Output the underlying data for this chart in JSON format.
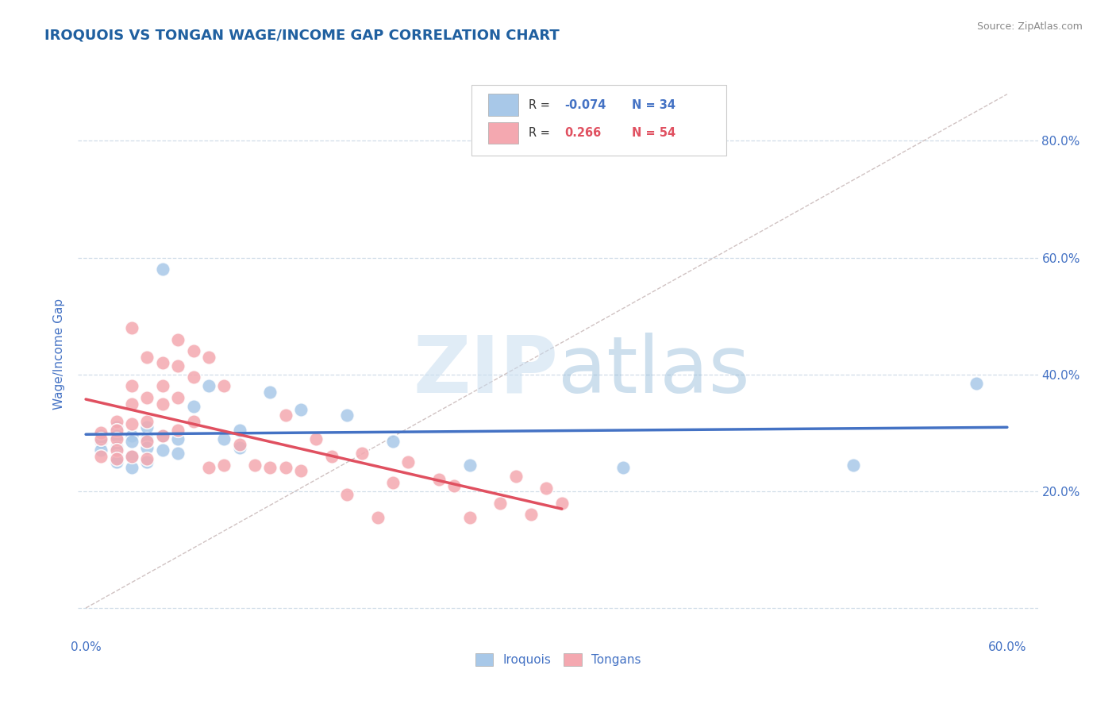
{
  "title": "IROQUOIS VS TONGAN WAGE/INCOME GAP CORRELATION CHART",
  "source": "Source: ZipAtlas.com",
  "ylabel": "Wage/Income Gap",
  "xlim": [
    -0.005,
    0.62
  ],
  "ylim": [
    -0.05,
    0.92
  ],
  "right_ytick_labels": [
    "80.0%",
    "60.0%",
    "40.0%",
    "20.0%"
  ],
  "right_ytick_positions": [
    0.8,
    0.6,
    0.4,
    0.2
  ],
  "bottom_xtick_labels": [
    "0.0%",
    "",
    "",
    "",
    "",
    "",
    "60.0%"
  ],
  "watermark_zip": "ZIP",
  "watermark_atlas": "atlas",
  "legend_r_iroquois": "R = ",
  "legend_rv_iroquois": "-0.074",
  "legend_n_iroquois": " N = 34",
  "legend_r_tongans": "R =  ",
  "legend_rv_tongans": "0.266",
  "legend_n_tongans": " N = 54",
  "iroquois_color": "#a8c8e8",
  "tongans_color": "#f4a8b0",
  "iroquois_line_color": "#4472c4",
  "tongans_line_color": "#e05060",
  "diagonal_line_color": "#c8b8b8",
  "background_color": "#ffffff",
  "grid_color": "#d0dde8",
  "title_color": "#2060a0",
  "tick_color": "#4472c4",
  "iroquois_x": [
    0.01,
    0.01,
    0.01,
    0.02,
    0.02,
    0.02,
    0.02,
    0.02,
    0.03,
    0.03,
    0.03,
    0.03,
    0.04,
    0.04,
    0.04,
    0.04,
    0.05,
    0.05,
    0.05,
    0.06,
    0.06,
    0.07,
    0.08,
    0.09,
    0.1,
    0.1,
    0.12,
    0.14,
    0.17,
    0.2,
    0.25,
    0.35,
    0.5,
    0.58
  ],
  "iroquois_y": [
    0.295,
    0.285,
    0.27,
    0.31,
    0.295,
    0.275,
    0.26,
    0.25,
    0.295,
    0.285,
    0.26,
    0.24,
    0.31,
    0.29,
    0.275,
    0.25,
    0.58,
    0.295,
    0.27,
    0.29,
    0.265,
    0.345,
    0.38,
    0.29,
    0.305,
    0.275,
    0.37,
    0.34,
    0.33,
    0.285,
    0.245,
    0.24,
    0.245,
    0.385
  ],
  "tongans_x": [
    0.01,
    0.01,
    0.01,
    0.02,
    0.02,
    0.02,
    0.02,
    0.02,
    0.03,
    0.03,
    0.03,
    0.03,
    0.03,
    0.04,
    0.04,
    0.04,
    0.04,
    0.04,
    0.05,
    0.05,
    0.05,
    0.05,
    0.06,
    0.06,
    0.06,
    0.06,
    0.07,
    0.07,
    0.07,
    0.08,
    0.08,
    0.09,
    0.09,
    0.1,
    0.11,
    0.12,
    0.13,
    0.13,
    0.14,
    0.15,
    0.16,
    0.17,
    0.18,
    0.19,
    0.2,
    0.21,
    0.23,
    0.24,
    0.25,
    0.27,
    0.28,
    0.29,
    0.3,
    0.31
  ],
  "tongans_y": [
    0.3,
    0.29,
    0.26,
    0.32,
    0.305,
    0.29,
    0.27,
    0.255,
    0.48,
    0.38,
    0.35,
    0.315,
    0.26,
    0.43,
    0.36,
    0.32,
    0.285,
    0.255,
    0.42,
    0.38,
    0.35,
    0.295,
    0.46,
    0.415,
    0.36,
    0.305,
    0.44,
    0.395,
    0.32,
    0.43,
    0.24,
    0.38,
    0.245,
    0.28,
    0.245,
    0.24,
    0.33,
    0.24,
    0.235,
    0.29,
    0.26,
    0.195,
    0.265,
    0.155,
    0.215,
    0.25,
    0.22,
    0.21,
    0.155,
    0.18,
    0.225,
    0.16,
    0.205,
    0.18
  ]
}
